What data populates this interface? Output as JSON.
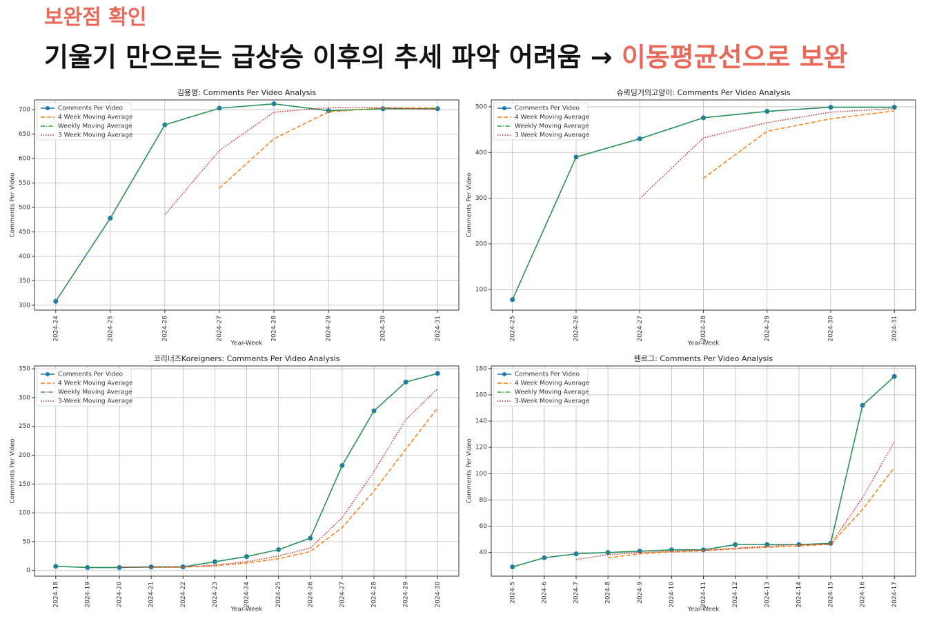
{
  "header": {
    "label": "보완점 확인",
    "title": "기울기 만으로는 급상승 이후의 추세 파악 어려움 →",
    "highlight": "이동평균선으로 보완"
  },
  "chart_data": [
    {
      "type": "line",
      "title": "김용명: Comments Per Video Analysis",
      "x_label": "Year-Week",
      "y_label": "Comments Per Video",
      "grid": true,
      "legend": "upper left",
      "categories": [
        "2024-24",
        "2024-25",
        "2024-26",
        "2024-27",
        "2024-28",
        "2024-29",
        "2024-30",
        "2024-31"
      ],
      "ylim": [
        290,
        720
      ],
      "yticks": [
        300,
        350,
        400,
        450,
        500,
        550,
        600,
        650,
        700
      ],
      "series": [
        {
          "name": "Comments Per Video",
          "color": "#1f77b4",
          "style": "solid",
          "marker": true,
          "values": [
            308,
            478,
            669,
            703,
            712,
            698,
            702,
            702
          ]
        },
        {
          "name": "4 Week Moving Average",
          "color": "#ff7f0e",
          "style": "dashed",
          "values": [
            null,
            null,
            null,
            539.5,
            640.5,
            695.5,
            703.75,
            703.5
          ]
        },
        {
          "name": "Weekly Moving Average",
          "color": "#2ca02c",
          "style": "dashdot",
          "values": [
            308,
            478,
            669,
            703,
            712,
            698,
            702,
            702
          ]
        },
        {
          "name": "3 Week Moving Average",
          "color": "#d62728",
          "style": "dotted",
          "values": [
            null,
            null,
            485,
            616.7,
            694.7,
            704.3,
            704,
            700.7
          ]
        }
      ]
    },
    {
      "type": "line",
      "title": "슈뢰딩거의고양이: Comments Per Video Analysis",
      "x_label": "Year-Week",
      "y_label": "Comments Per Video",
      "grid": true,
      "legend": "upper left",
      "categories": [
        "2024-25",
        "2024-26",
        "2024-27",
        "2024-28",
        "2024-29",
        "2024-30",
        "2024-31"
      ],
      "ylim": [
        55,
        515
      ],
      "yticks": [
        100,
        200,
        300,
        400,
        500
      ],
      "series": [
        {
          "name": "Comments Per Video",
          "color": "#1f77b4",
          "style": "solid",
          "marker": true,
          "values": [
            78,
            390,
            430,
            476,
            490,
            499,
            499
          ]
        },
        {
          "name": "4 Week Moving Average",
          "color": "#ff7f0e",
          "style": "dashed",
          "values": [
            null,
            null,
            null,
            343.5,
            446.5,
            473.75,
            491
          ]
        },
        {
          "name": "Weekly Moving Average",
          "color": "#2ca02c",
          "style": "dashdot",
          "values": [
            78,
            390,
            430,
            476,
            490,
            499,
            499
          ]
        },
        {
          "name": "3 Week Moving Average",
          "color": "#d62728",
          "style": "dotted",
          "values": [
            null,
            null,
            299.3,
            432,
            465.3,
            488.3,
            496
          ]
        }
      ]
    },
    {
      "type": "line",
      "title": "코리너즈Koreigners: Comments Per Video Analysis",
      "x_label": "Year-Week",
      "y_label": "Comments Per Video",
      "grid": true,
      "legend": "upper left",
      "categories": [
        "2024-18",
        "2024-19",
        "2024-20",
        "2024-21",
        "2024-22",
        "2024-23",
        "2024-24",
        "2024-25",
        "2024-26",
        "2024-27",
        "2024-28",
        "2024-29",
        "2024-30"
      ],
      "ylim": [
        -10,
        355
      ],
      "yticks": [
        0,
        50,
        100,
        150,
        200,
        250,
        300,
        350
      ],
      "series": [
        {
          "name": "Comments Per Video",
          "color": "#1f77b4",
          "style": "solid",
          "marker": true,
          "values": [
            7,
            5,
            5,
            6,
            6,
            15,
            24,
            36,
            56,
            182,
            277,
            327,
            342
          ]
        },
        {
          "name": "4 Week Moving Average",
          "color": "#ff7f0e",
          "style": "dashed",
          "values": [
            null,
            null,
            null,
            5.75,
            5.5,
            8,
            12.75,
            20.25,
            32.75,
            74.5,
            137.75,
            210.5,
            282
          ]
        },
        {
          "name": "Weekly Moving Average",
          "color": "#2ca02c",
          "style": "dashdot",
          "values": [
            7,
            5,
            5,
            6,
            6,
            15,
            24,
            36,
            56,
            182,
            277,
            327,
            342
          ]
        },
        {
          "name": "3-Week Moving Average",
          "color": "#d62728",
          "style": "dotted",
          "values": [
            null,
            null,
            5.7,
            5.3,
            5.7,
            9,
            15,
            25,
            38.7,
            91.3,
            171.7,
            262,
            315.3
          ]
        }
      ]
    },
    {
      "type": "line",
      "title": "텐르그: Comments Per Video Analysis",
      "x_label": "Year-Week",
      "y_label": "Comments Per Video",
      "grid": true,
      "legend": "upper left",
      "categories": [
        "2024-5",
        "2024-6",
        "2024-7",
        "2024-8",
        "2024-9",
        "2024-10",
        "2024-11",
        "2024-12",
        "2024-13",
        "2024-14",
        "2024-15",
        "2024-16",
        "2024-17"
      ],
      "ylim": [
        22,
        182
      ],
      "yticks": [
        40,
        60,
        80,
        100,
        120,
        140,
        160,
        180
      ],
      "series": [
        {
          "name": "Comments Per Video",
          "color": "#1f77b4",
          "style": "solid",
          "marker": true,
          "values": [
            29,
            36,
            39,
            40,
            41,
            42,
            42,
            46,
            46,
            46,
            47,
            152,
            174
          ]
        },
        {
          "name": "4 Week Moving Average",
          "color": "#ff7f0e",
          "style": "dashed",
          "values": [
            null,
            null,
            null,
            36,
            39,
            40.5,
            41.25,
            42.75,
            44,
            45,
            46.25,
            72.75,
            104.75
          ]
        },
        {
          "name": "Weekly Moving Average",
          "color": "#2ca02c",
          "style": "dashdot",
          "values": [
            29,
            36,
            39,
            40,
            41,
            42,
            42,
            46,
            46,
            46,
            47,
            152,
            174
          ]
        },
        {
          "name": "3-Week Moving Average",
          "color": "#d62728",
          "style": "dotted",
          "values": [
            null,
            null,
            34.7,
            38.3,
            40,
            41,
            41.7,
            43.3,
            44.7,
            46,
            46.3,
            81.7,
            124.3
          ]
        }
      ]
    }
  ]
}
